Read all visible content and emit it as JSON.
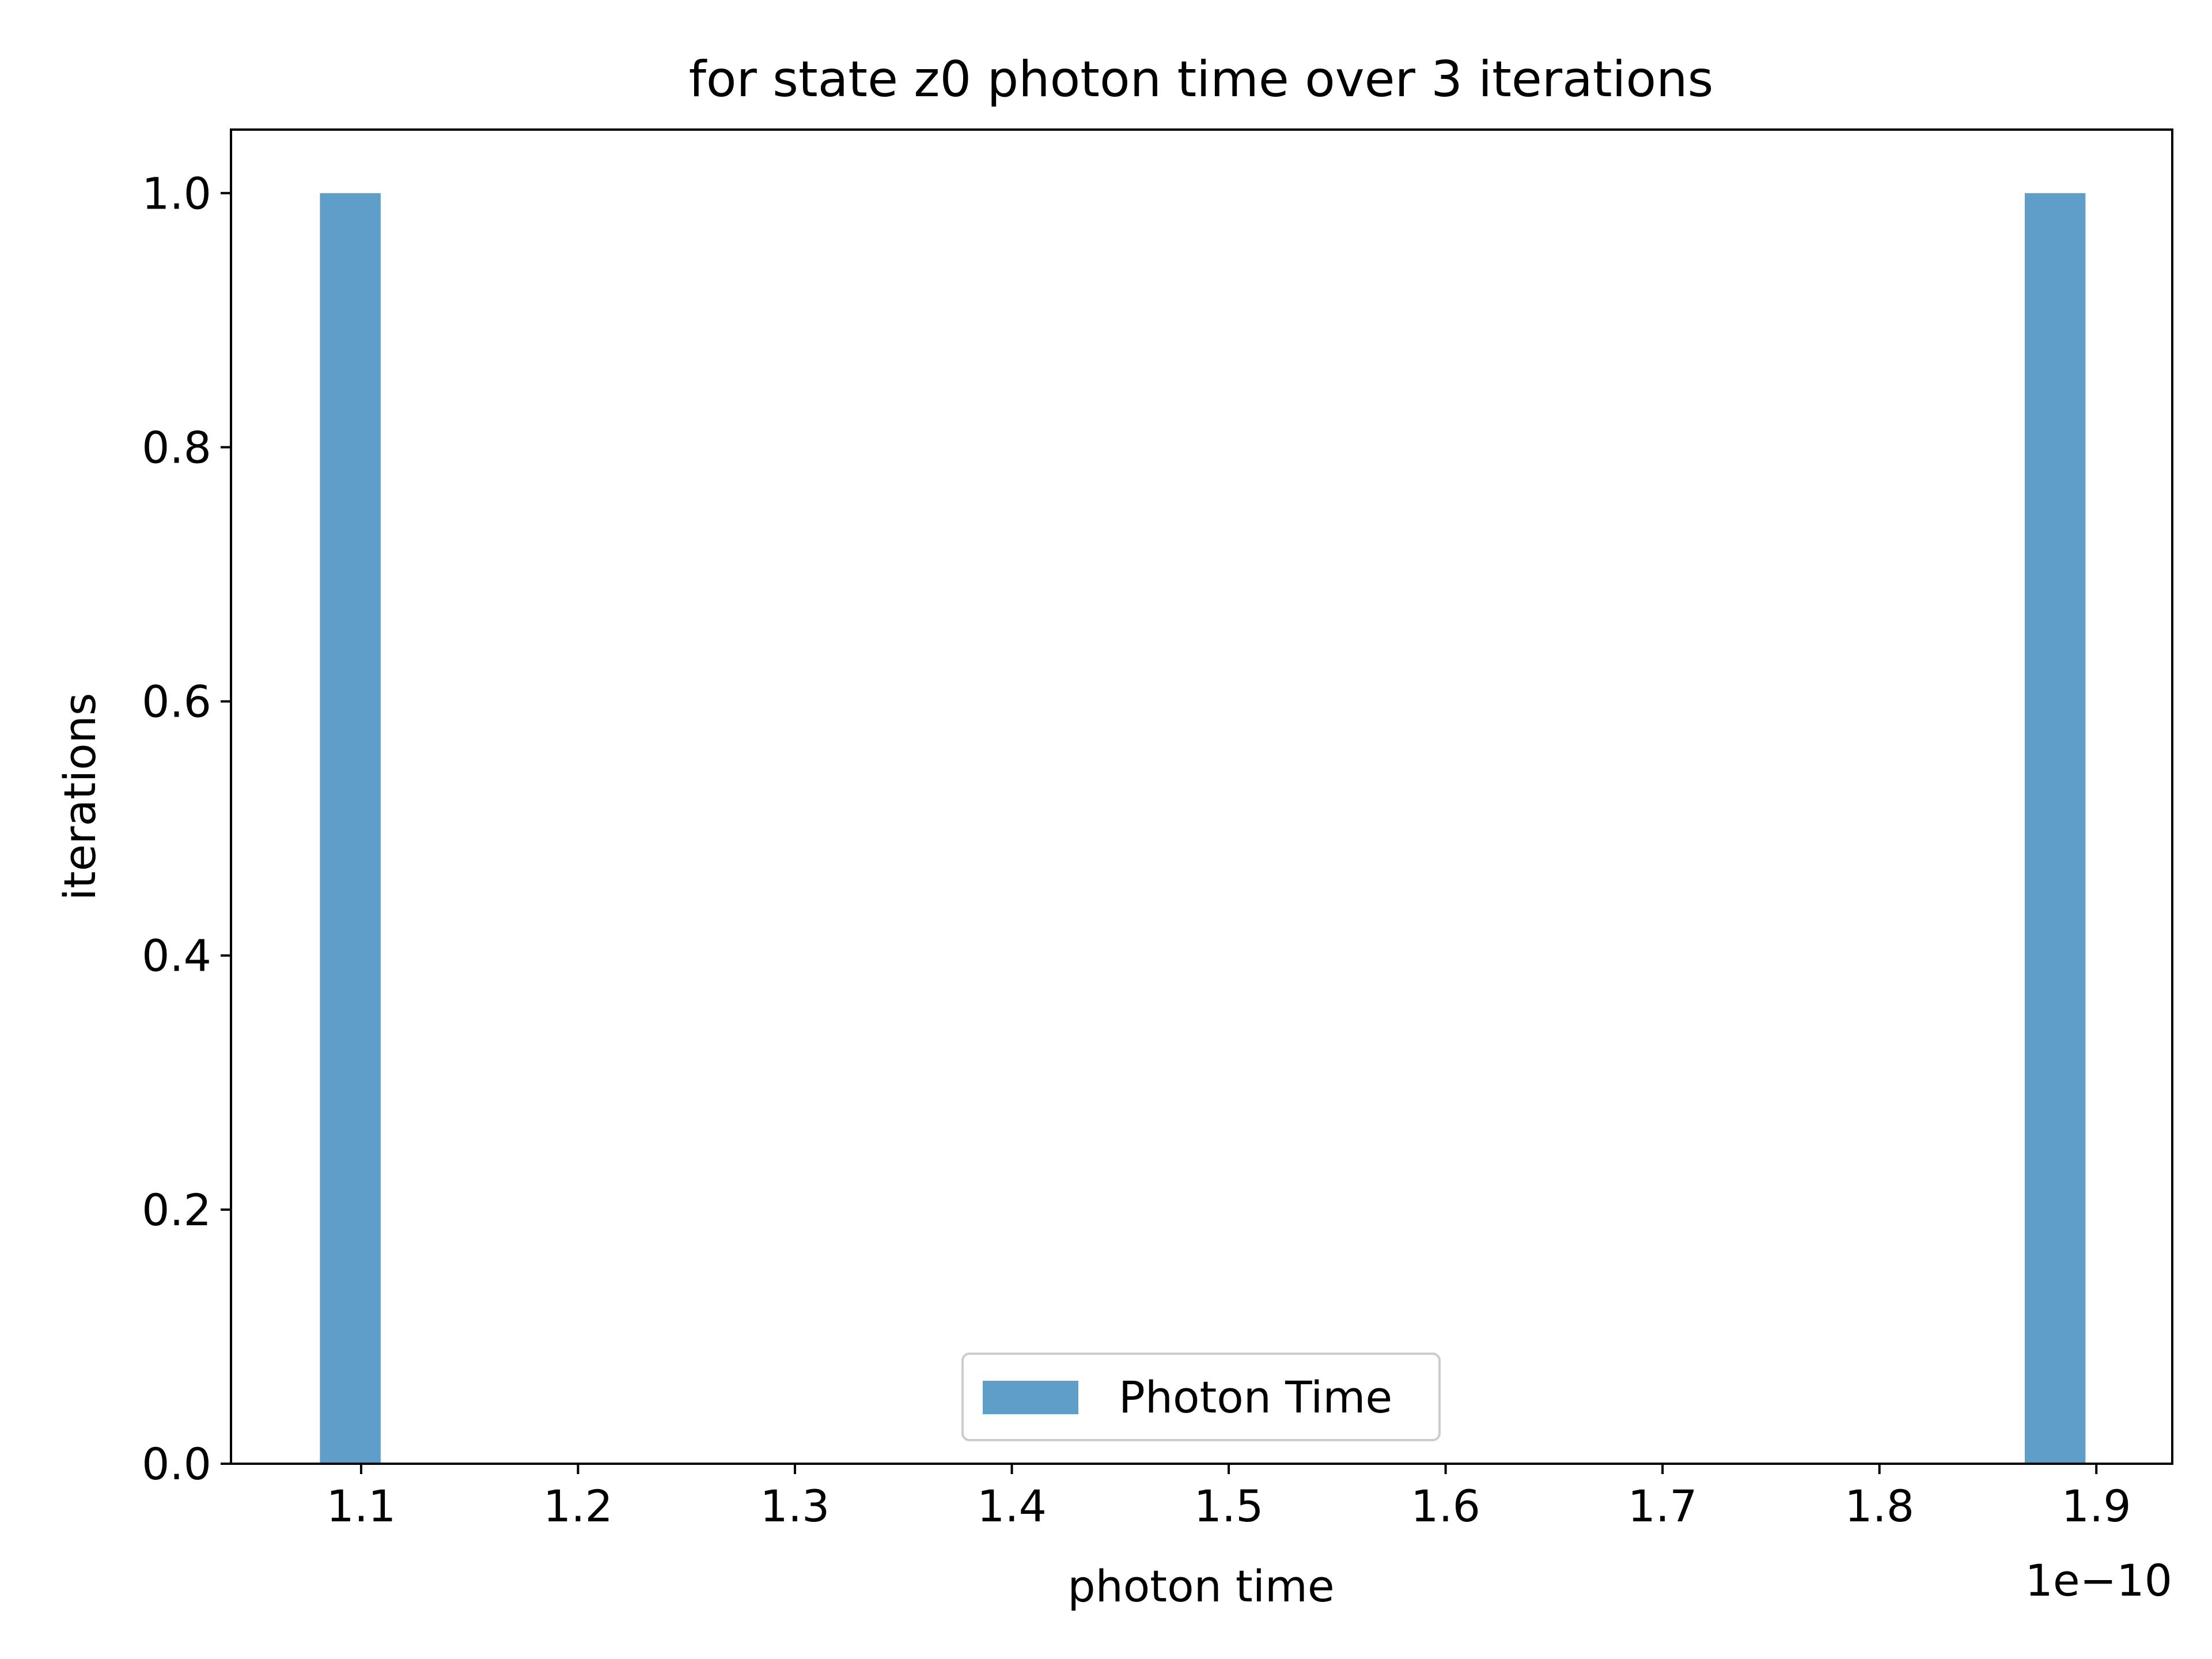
{
  "chart_data": {
    "type": "bar",
    "title": "for state z0 photon time over 3 iterations",
    "xlabel": "photon time",
    "ylabel": "iterations",
    "x_offset_label": "1e−10",
    "xlim": [
      1.04,
      1.935
    ],
    "ylim": [
      0.0,
      1.05
    ],
    "x_ticks": [
      1.1,
      1.2,
      1.3,
      1.4,
      1.5,
      1.6,
      1.7,
      1.8,
      1.9
    ],
    "x_tick_labels": [
      "1.1",
      "1.2",
      "1.3",
      "1.4",
      "1.5",
      "1.6",
      "1.7",
      "1.8",
      "1.9"
    ],
    "y_ticks": [
      0.0,
      0.2,
      0.4,
      0.6,
      0.8,
      1.0
    ],
    "y_tick_labels": [
      "0.0",
      "0.2",
      "0.4",
      "0.6",
      "0.8",
      "1.0"
    ],
    "series": [
      {
        "name": "Photon Time",
        "color": "#5f9ec9",
        "bars": [
          {
            "x_start": 1.081,
            "x_end": 1.109,
            "value": 1.0
          },
          {
            "x_start": 1.867,
            "x_end": 1.895,
            "value": 1.0
          }
        ]
      }
    ],
    "legend": {
      "position": "lower-center",
      "entries": [
        "Photon Time"
      ]
    },
    "grid": false
  }
}
